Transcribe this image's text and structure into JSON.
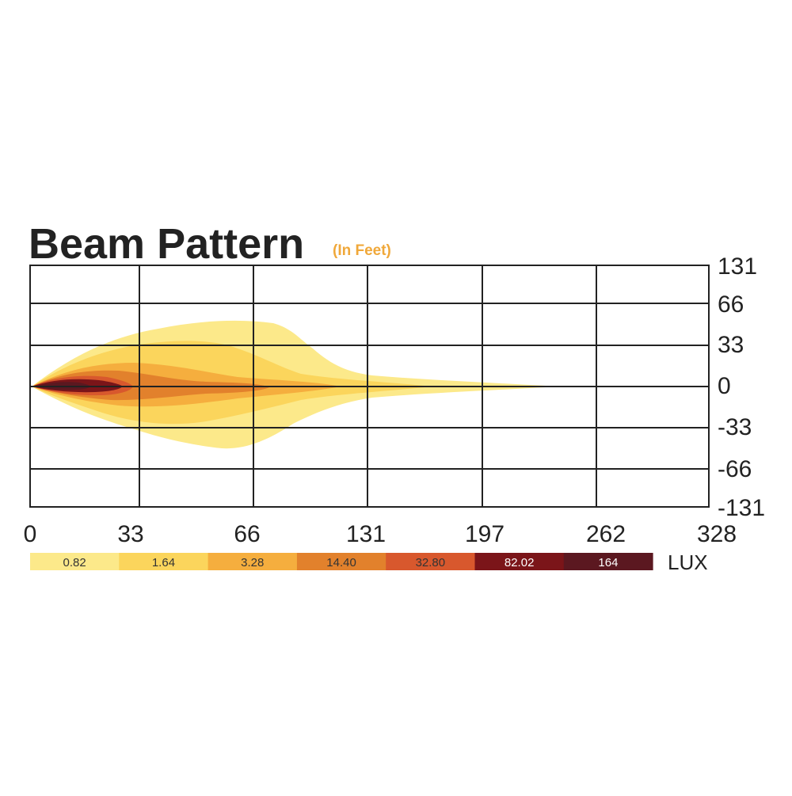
{
  "header": {
    "title": "Beam Pattern",
    "subtitle": "(In Feet)"
  },
  "x_labels": [
    "0",
    "33",
    "66",
    "131",
    "197",
    "262",
    "328"
  ],
  "y_labels": [
    "131",
    "66",
    "33",
    "0",
    "-33",
    "-66",
    "-131"
  ],
  "legend": {
    "unit": "LUX",
    "entries": [
      {
        "label": "0.82",
        "color": "#fce98a",
        "text_color": "#333333"
      },
      {
        "label": "1.64",
        "color": "#fbd55c",
        "text_color": "#333333"
      },
      {
        "label": "3.28",
        "color": "#f5ae3e",
        "text_color": "#333333"
      },
      {
        "label": "14.40",
        "color": "#e2812c",
        "text_color": "#333333"
      },
      {
        "label": "32.80",
        "color": "#d8582d",
        "text_color": "#333333"
      },
      {
        "label": "82.02",
        "color": "#7b1519",
        "text_color": "#ffffff"
      },
      {
        "label": "164",
        "color": "#5b1820",
        "text_color": "#ffffff"
      }
    ]
  }
}
